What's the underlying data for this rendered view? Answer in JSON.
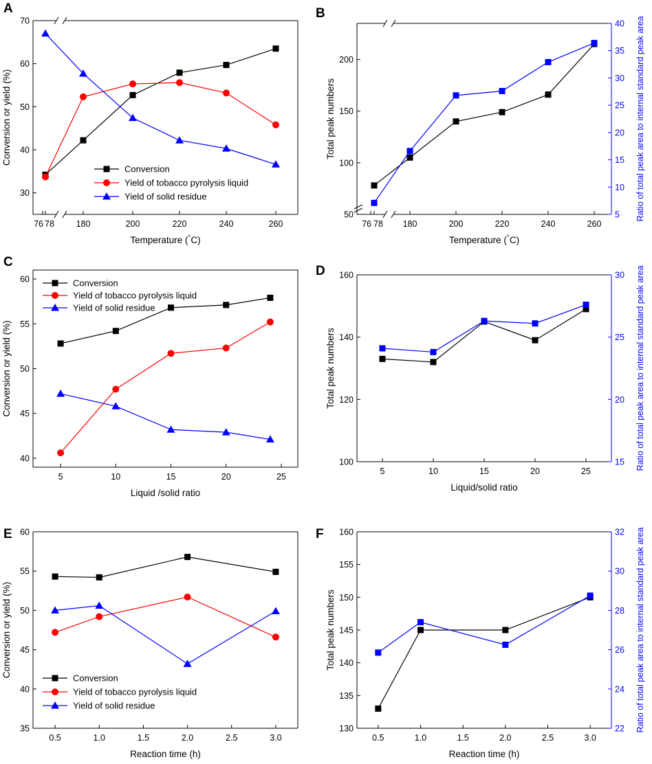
{
  "chart_data": [
    {
      "panel": "A",
      "type": "line",
      "xlabel": "Temperature (°C)",
      "ylabel": "Conversion or yield (%)",
      "ylim": [
        25,
        70
      ],
      "y_ticks": [
        30,
        40,
        50,
        60,
        70
      ],
      "x_ticks": [
        "76",
        "78",
        "180",
        "200",
        "220",
        "240",
        "260"
      ],
      "x_axis_break": true,
      "x_points": [
        "78",
        "180",
        "200",
        "220",
        "240",
        "260"
      ],
      "series": [
        {
          "name": "Conversion",
          "color": "#000000",
          "marker": "square",
          "values": [
            34.2,
            42.2,
            52.7,
            57.9,
            59.7,
            63.5
          ]
        },
        {
          "name": "Yield of tobacco pyrolysis liquid",
          "color": "#ff0000",
          "marker": "circle",
          "values": [
            33.7,
            52.3,
            55.3,
            55.6,
            53.2,
            45.8
          ]
        },
        {
          "name": "Yield of solid residue",
          "color": "#0000ff",
          "marker": "triangle",
          "values": [
            67.0,
            57.7,
            47.4,
            42.2,
            40.3,
            36.6
          ]
        }
      ],
      "legend_position": "bottom-center"
    },
    {
      "panel": "B",
      "type": "line",
      "xlabel": "Temperature (°C)",
      "ylabel": "Total  peak numbers",
      "ylabel_right": "Ratio of total peak area to internal standard peak area",
      "ylim": [
        50,
        235
      ],
      "y_ticks": [
        50,
        100,
        150,
        200
      ],
      "ylim_right": [
        5,
        40
      ],
      "y_ticks_right": [
        5,
        10,
        15,
        20,
        25,
        30,
        35,
        40
      ],
      "x_ticks": [
        "76",
        "78",
        "180",
        "200",
        "220",
        "240",
        "260"
      ],
      "x_axis_break": true,
      "y_axis_break": true,
      "x_points": [
        "78",
        "180",
        "200",
        "220",
        "240",
        "260"
      ],
      "series": [
        {
          "name": "Total peak numbers",
          "axis": "left",
          "color": "#000000",
          "marker": "square",
          "values": [
            78,
            105,
            140,
            149,
            166,
            215
          ]
        },
        {
          "name": "Ratio of total peak area to internal standard peak area",
          "axis": "right",
          "color": "#0000ff",
          "marker": "square",
          "values": [
            7.1,
            16.6,
            26.8,
            27.6,
            32.9,
            36.4
          ]
        }
      ]
    },
    {
      "panel": "C",
      "type": "line",
      "xlabel": "Liquid /solid ratio",
      "ylabel": "Conversion or yield (%)",
      "xlim": [
        2.5,
        26.5
      ],
      "x_ticks": [
        5,
        10,
        15,
        20,
        25
      ],
      "ylim": [
        39,
        61
      ],
      "y_ticks": [
        40,
        45,
        50,
        55,
        60
      ],
      "x": [
        5,
        10,
        15,
        20,
        24
      ],
      "series": [
        {
          "name": "Conversion",
          "color": "#000000",
          "marker": "square",
          "values": [
            52.8,
            54.2,
            56.8,
            57.1,
            57.9
          ]
        },
        {
          "name": "Yield of tobacco pyrolysis liquid",
          "color": "#ff0000",
          "marker": "circle",
          "values": [
            40.6,
            47.7,
            51.7,
            52.3,
            55.2
          ]
        },
        {
          "name": "Yield of solid residue",
          "color": "#0000ff",
          "marker": "triangle",
          "values": [
            47.2,
            45.8,
            43.2,
            42.9,
            42.1
          ]
        }
      ],
      "legend_position": "top-left"
    },
    {
      "panel": "D",
      "type": "line",
      "xlabel": "Liquid/solid ratio",
      "ylabel": "Total  peak numbers",
      "ylabel_right": "Ratio of total peak area to internal standard peak area",
      "xlim": [
        2.5,
        27.5
      ],
      "x_ticks": [
        5,
        10,
        15,
        20,
        25
      ],
      "ylim": [
        100,
        160
      ],
      "y_ticks": [
        100,
        120,
        140,
        160
      ],
      "ylim_right": [
        15,
        30
      ],
      "y_ticks_right": [
        15,
        20,
        25,
        30
      ],
      "x": [
        5,
        10,
        15,
        20,
        25
      ],
      "series": [
        {
          "name": "Total peak numbers",
          "axis": "left",
          "color": "#000000",
          "marker": "square",
          "values": [
            133,
            132,
            145,
            139,
            149
          ]
        },
        {
          "name": "Ratio of total peak area to internal standard peak area",
          "axis": "right",
          "color": "#0000ff",
          "marker": "square",
          "values": [
            24.1,
            23.8,
            26.3,
            26.1,
            27.6
          ]
        }
      ]
    },
    {
      "panel": "E",
      "type": "line",
      "xlabel": "Reaction time (h)",
      "ylabel": "Conversion or yield (%)",
      "xlim": [
        0.25,
        3.25
      ],
      "x_ticks": [
        "0.5",
        "1.0",
        "1.5",
        "2.0",
        "2.5",
        "3.0"
      ],
      "ylim": [
        35,
        60
      ],
      "y_ticks": [
        35,
        40,
        45,
        50,
        55,
        60
      ],
      "x": [
        0.5,
        1.0,
        2.0,
        3.0
      ],
      "series": [
        {
          "name": "Conversion",
          "color": "#000000",
          "marker": "square",
          "values": [
            54.3,
            54.2,
            56.8,
            54.9
          ]
        },
        {
          "name": "Yield of tobacco pyrolysis liquid",
          "color": "#ff0000",
          "marker": "circle",
          "values": [
            47.2,
            49.2,
            51.7,
            46.6
          ]
        },
        {
          "name": "Yield of solid residue",
          "color": "#0000ff",
          "marker": "triangle",
          "values": [
            50.0,
            50.6,
            43.2,
            49.9
          ]
        }
      ],
      "legend_position": "bottom-left"
    },
    {
      "panel": "F",
      "type": "line",
      "xlabel": "Reaction time (h)",
      "ylabel": "Total  peak numbers",
      "ylabel_right": "Ratio of total peak area to internal standard peak area",
      "xlim": [
        0.25,
        3.25
      ],
      "x_ticks": [
        "0.5",
        "1.0",
        "1.5",
        "2.0",
        "2.5",
        "3.0"
      ],
      "ylim": [
        130,
        160
      ],
      "y_ticks": [
        130,
        135,
        140,
        145,
        150,
        155,
        160
      ],
      "ylim_right": [
        22,
        32
      ],
      "y_ticks_right": [
        22,
        24,
        26,
        28,
        30,
        32
      ],
      "x": [
        0.5,
        1.0,
        2.0,
        3.0
      ],
      "series": [
        {
          "name": "Total peak numbers",
          "axis": "left",
          "color": "#000000",
          "marker": "square",
          "values": [
            133,
            145,
            145,
            150
          ]
        },
        {
          "name": "Ratio of total peak area to internal standard peak area",
          "axis": "right",
          "color": "#0000ff",
          "marker": "square",
          "values": [
            25.85,
            27.4,
            26.25,
            28.75
          ]
        }
      ]
    }
  ]
}
